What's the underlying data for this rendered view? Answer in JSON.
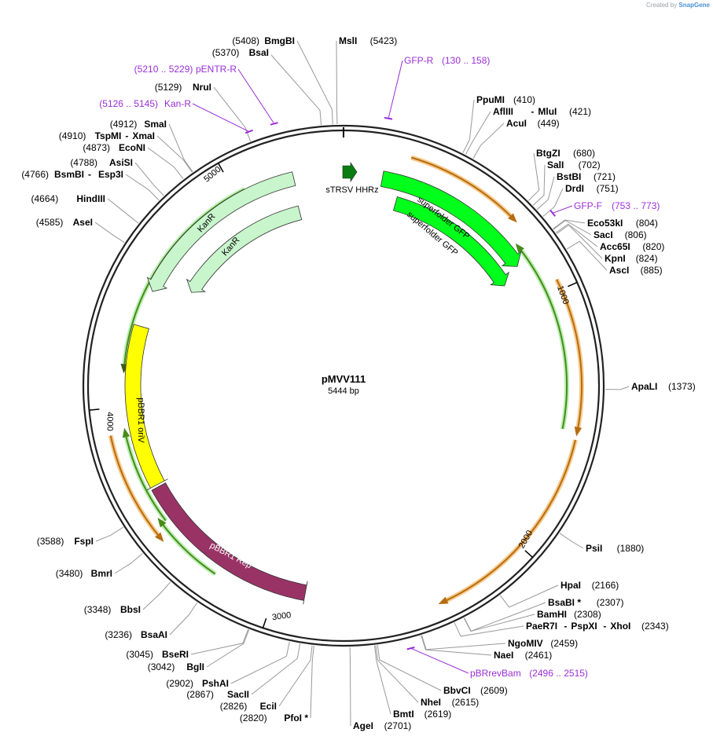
{
  "credit": {
    "prefix": "Created by",
    "brand": "SnapGene"
  },
  "plasmid": {
    "name": "pMVV111",
    "size_label": "5444 bp"
  },
  "ticks": [
    "1000",
    "2000",
    "3000",
    "4000",
    "5000"
  ],
  "sites": [
    {
      "name": "MslI",
      "pos": "(5423)"
    },
    {
      "name": "BmgBI",
      "pos": "(5408)"
    },
    {
      "name": "BsaI",
      "pos": "(5370)"
    },
    {
      "name": "NruI",
      "pos": "(5129)"
    },
    {
      "name": "SmaI",
      "pos": "(4912)"
    },
    {
      "name": "TspMI",
      "pos": "(4910)",
      "name2": "XmaI"
    },
    {
      "name": "EcoNI",
      "pos": "(4873)"
    },
    {
      "name": "AsiSI",
      "pos": "(4788)"
    },
    {
      "name": "BsmBI",
      "pos": "(4766)",
      "name2": "Esp3I"
    },
    {
      "name": "HindIII",
      "pos": "(4664)"
    },
    {
      "name": "AseI",
      "pos": "(4585)"
    },
    {
      "name": "PpuMI",
      "pos": "(410)"
    },
    {
      "name": "AflIII",
      "pos": "(421)",
      "name2": "MluI"
    },
    {
      "name": "AcuI",
      "pos": "(449)"
    },
    {
      "name": "BtgZI",
      "pos": "(680)"
    },
    {
      "name": "SalI",
      "pos": "(702)"
    },
    {
      "name": "BstBI",
      "pos": "(721)"
    },
    {
      "name": "DrdI",
      "pos": "(751)"
    },
    {
      "name": "Eco53kI",
      "pos": "(804)"
    },
    {
      "name": "SacI",
      "pos": "(806)"
    },
    {
      "name": "Acc65I",
      "pos": "(820)"
    },
    {
      "name": "KpnI",
      "pos": "(824)"
    },
    {
      "name": "AscI",
      "pos": "(885)"
    },
    {
      "name": "ApaLI",
      "pos": "(1373)"
    },
    {
      "name": "PsiI",
      "pos": "(1880)"
    },
    {
      "name": "HpaI",
      "pos": "(2166)"
    },
    {
      "name": "BsaBI *",
      "pos": "(2307)"
    },
    {
      "name": "BamHI",
      "pos": "(2308)"
    },
    {
      "name": "PaeR7I",
      "name2": "PspXI",
      "name3": "XhoI",
      "pos": "(2343)"
    },
    {
      "name": "NgoMIV",
      "pos": "(2459)"
    },
    {
      "name": "NaeI",
      "pos": "(2461)"
    },
    {
      "name": "BbvCI",
      "pos": "(2609)"
    },
    {
      "name": "NheI",
      "pos": "(2615)"
    },
    {
      "name": "BmtI",
      "pos": "(2619)"
    },
    {
      "name": "AgeI",
      "pos": "(2701)"
    },
    {
      "name": "PfoI *",
      "pos": "(2820)"
    },
    {
      "name": "EciI",
      "pos": "(2826)"
    },
    {
      "name": "SacII",
      "pos": "(2867)"
    },
    {
      "name": "PshAI",
      "pos": "(2902)"
    },
    {
      "name": "BglI",
      "pos": "(3042)"
    },
    {
      "name": "BseRI",
      "pos": "(3045)"
    },
    {
      "name": "BsaAI",
      "pos": "(3236)"
    },
    {
      "name": "BbsI",
      "pos": "(3348)"
    },
    {
      "name": "BmrI",
      "pos": "(3480)"
    },
    {
      "name": "FspI",
      "pos": "(3588)"
    }
  ],
  "primers": [
    {
      "name": "GFP-R",
      "range": "(130 .. 158)"
    },
    {
      "name": "pENTR-R",
      "range": "(5210 .. 5229)"
    },
    {
      "name": "Kan-R",
      "range": "(5126 .. 5145)"
    },
    {
      "name": "GFP-F",
      "range": "(753 .. 773)"
    },
    {
      "name": "pBRrevBam",
      "range": "(2496 .. 2515)"
    }
  ],
  "features": [
    {
      "name": "sTRSV HHRz",
      "color": "#0a7d10"
    },
    {
      "name": "superfolder GFP",
      "color": "#00ff1a"
    },
    {
      "name": "superfolder GFP",
      "color": "#00ff1a"
    },
    {
      "name": "KanR",
      "color": "#c8f5cc"
    },
    {
      "name": "KanR",
      "color": "#c8f5cc"
    },
    {
      "name": "pBBR1 oriV",
      "color": "#ffff00"
    },
    {
      "name": "pBBR1 Rep",
      "color": "#993366"
    }
  ]
}
